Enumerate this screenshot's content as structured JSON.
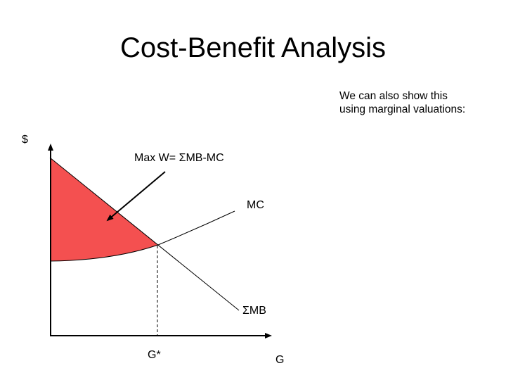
{
  "title": "Cost-Benefit Analysis",
  "note": {
    "line1": "We can also show this",
    "line2": "using marginal valuations:"
  },
  "diagram": {
    "y_axis_label": "$",
    "x_axis_label": "G",
    "annotation": "Max W= ΣMB-MC",
    "mc_label": "MC",
    "mb_label": "ΣMB",
    "equilibrium_label": "G*",
    "shaded_region_color": "#f45050",
    "line_color": "#000000"
  }
}
